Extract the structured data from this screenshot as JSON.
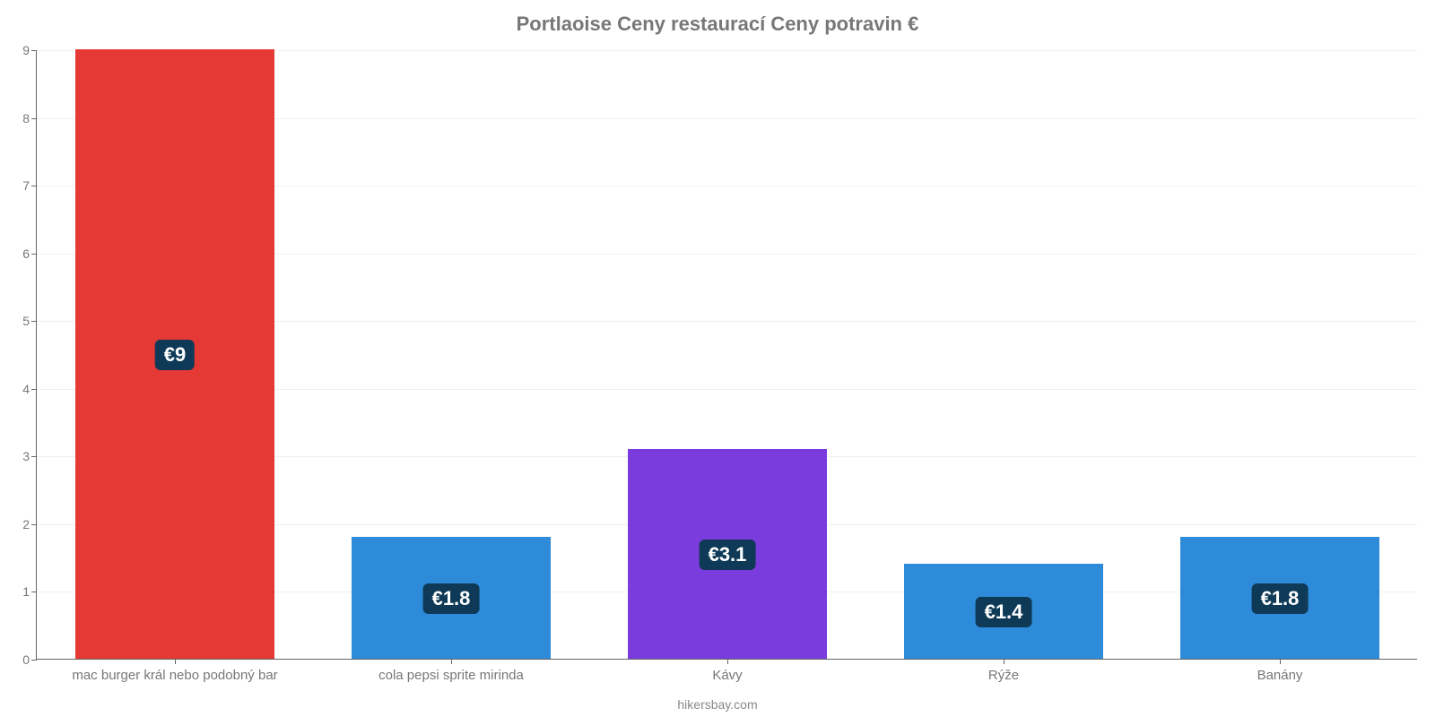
{
  "chart": {
    "type": "bar",
    "title": "Portlaoise Ceny restaurací Ceny potravin €",
    "title_fontsize": 22,
    "title_color": "#777777",
    "footer": "hikersbay.com",
    "footer_color": "#888888",
    "background_color": "#ffffff",
    "grid_color": "#f0f0f0",
    "axis_color": "#666666",
    "tick_label_color": "#777777",
    "ylim": [
      0,
      9
    ],
    "ytick_step": 1,
    "bar_width_ratio": 0.72,
    "data_label_bg": "#0e3a57",
    "data_label_fontsize": 22,
    "category_label_fontsize": 15,
    "categories": [
      {
        "label": "mac burger král nebo podobný bar",
        "value": 9.0,
        "display": "€9",
        "color": "#e53935"
      },
      {
        "label": "cola pepsi sprite mirinda",
        "value": 1.8,
        "display": "€1.8",
        "color": "#2e8bd9"
      },
      {
        "label": "Kávy",
        "value": 3.1,
        "display": "€3.1",
        "color": "#7b3cdd"
      },
      {
        "label": "Rýže",
        "value": 1.4,
        "display": "€1.4",
        "color": "#2e8bd9"
      },
      {
        "label": "Banány",
        "value": 1.8,
        "display": "€1.8",
        "color": "#2e8bd9"
      }
    ]
  }
}
